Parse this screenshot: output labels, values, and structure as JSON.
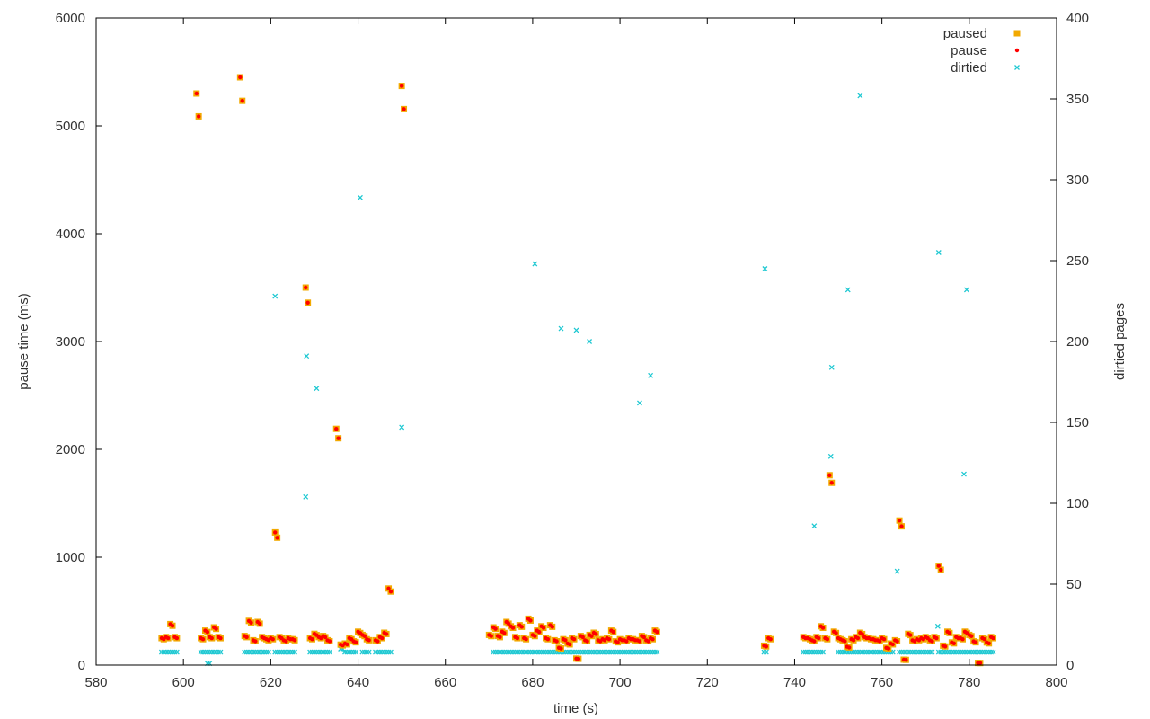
{
  "chart_data": {
    "type": "scatter",
    "title": "",
    "xlabel": "time (s)",
    "ylabel": "pause time (ms)",
    "y2label": "dirtied pages",
    "xlim": [
      580,
      800
    ],
    "ylim": [
      0,
      6000
    ],
    "y2lim": [
      0,
      400
    ],
    "xticks": [
      580,
      600,
      620,
      640,
      660,
      680,
      700,
      720,
      740,
      760,
      780,
      800
    ],
    "yticks": [
      0,
      1000,
      2000,
      3000,
      4000,
      5000,
      6000
    ],
    "y2ticks": [
      0,
      50,
      100,
      150,
      200,
      250,
      300,
      350,
      400
    ],
    "grid": false,
    "legend_position": "top-right",
    "colors": {
      "paused": "#f2a900",
      "pause": "#ff0000",
      "dirtied": "#1ec8d2"
    },
    "series": [
      {
        "name": "paused",
        "marker": "square",
        "axis": "y1",
        "x": [
          595,
          596,
          597,
          598,
          603,
          604,
          605,
          606,
          607,
          608,
          613,
          614,
          615,
          616,
          617,
          618,
          619,
          620,
          621,
          622,
          623,
          624,
          625,
          628,
          629,
          630,
          631,
          632,
          633,
          635,
          636,
          637,
          638,
          639,
          640,
          641,
          642,
          644,
          645,
          646,
          647,
          650,
          670,
          671,
          672,
          673,
          674,
          675,
          676,
          677,
          678,
          679,
          680,
          681,
          682,
          683,
          684,
          685,
          686,
          687,
          688,
          689,
          690,
          691,
          692,
          693,
          694,
          695,
          696,
          697,
          698,
          699,
          700,
          701,
          702,
          703,
          704,
          705,
          706,
          707,
          708,
          733,
          734,
          742,
          743,
          744,
          745,
          746,
          747,
          748,
          749,
          750,
          751,
          752,
          753,
          754,
          755,
          756,
          757,
          758,
          759,
          760,
          761,
          762,
          763,
          764,
          765,
          766,
          767,
          768,
          769,
          770,
          771,
          772,
          773,
          774,
          775,
          776,
          777,
          778,
          779,
          780,
          781,
          782,
          783,
          784,
          785
        ],
        "y": [
          250,
          260,
          380,
          260,
          5300,
          250,
          320,
          260,
          350,
          260,
          5450,
          270,
          410,
          230,
          400,
          260,
          240,
          250,
          1230,
          260,
          230,
          250,
          240,
          3500,
          250,
          290,
          260,
          270,
          230,
          2190,
          190,
          200,
          250,
          220,
          310,
          280,
          240,
          230,
          260,
          300,
          710,
          5370,
          280,
          350,
          270,
          310,
          400,
          360,
          260,
          370,
          250,
          430,
          280,
          320,
          360,
          250,
          370,
          230,
          160,
          240,
          200,
          250,
          60,
          270,
          230,
          280,
          300,
          230,
          240,
          250,
          320,
          220,
          240,
          230,
          250,
          240,
          230,
          270,
          230,
          250,
          320,
          180,
          250,
          260,
          250,
          230,
          260,
          360,
          250,
          1760,
          310,
          250,
          230,
          170,
          240,
          260,
          300,
          260,
          250,
          240,
          230,
          250,
          160,
          200,
          230,
          1340,
          50,
          290,
          230,
          240,
          250,
          260,
          230,
          260,
          920,
          180,
          310,
          210,
          260,
          250,
          310,
          280,
          220,
          20,
          250,
          210,
          260
        ],
        "note": ""
      },
      {
        "name": "pause",
        "marker": "circle",
        "axis": "y1",
        "x": [
          595,
          596,
          597,
          598,
          603,
          604,
          605,
          606,
          607,
          608,
          613,
          614,
          615,
          616,
          617,
          618,
          619,
          620,
          621,
          622,
          623,
          624,
          625,
          628,
          629,
          630,
          631,
          632,
          633,
          635,
          636,
          637,
          638,
          639,
          640,
          641,
          642,
          644,
          645,
          646,
          647,
          650,
          670,
          671,
          672,
          673,
          674,
          675,
          676,
          677,
          678,
          679,
          680,
          681,
          682,
          683,
          684,
          685,
          686,
          687,
          688,
          689,
          690,
          691,
          692,
          693,
          694,
          695,
          696,
          697,
          698,
          699,
          700,
          701,
          702,
          703,
          704,
          705,
          706,
          707,
          708,
          733,
          734,
          742,
          743,
          744,
          745,
          746,
          747,
          748,
          749,
          750,
          751,
          752,
          753,
          754,
          755,
          756,
          757,
          758,
          759,
          760,
          761,
          762,
          763,
          764,
          765,
          766,
          767,
          768,
          769,
          770,
          771,
          772,
          773,
          774,
          775,
          776,
          777,
          778,
          779,
          780,
          781,
          782,
          783,
          784,
          785
        ],
        "y": [
          250,
          260,
          380,
          260,
          5300,
          250,
          320,
          260,
          350,
          260,
          5450,
          270,
          410,
          230,
          400,
          260,
          240,
          250,
          1230,
          260,
          230,
          250,
          240,
          3500,
          250,
          290,
          260,
          270,
          230,
          2190,
          190,
          200,
          250,
          220,
          310,
          280,
          240,
          230,
          260,
          300,
          710,
          5370,
          280,
          350,
          270,
          310,
          400,
          360,
          260,
          370,
          250,
          430,
          280,
          320,
          360,
          250,
          370,
          230,
          160,
          240,
          200,
          250,
          60,
          270,
          230,
          280,
          300,
          230,
          240,
          250,
          320,
          220,
          240,
          230,
          250,
          240,
          230,
          270,
          230,
          250,
          320,
          180,
          250,
          260,
          250,
          230,
          260,
          360,
          250,
          1760,
          310,
          250,
          230,
          170,
          240,
          260,
          300,
          260,
          250,
          240,
          230,
          250,
          160,
          200,
          230,
          1340,
          50,
          290,
          230,
          240,
          250,
          260,
          230,
          260,
          920,
          180,
          310,
          210,
          260,
          250,
          310,
          280,
          220,
          20,
          250,
          210,
          260
        ]
      },
      {
        "name": "dirtied",
        "marker": "cross",
        "axis": "y2",
        "x": [
          595,
          596,
          597,
          598,
          604,
          605,
          606,
          607,
          608,
          614,
          615,
          616,
          617,
          618,
          619,
          621,
          622,
          623,
          624,
          625,
          629,
          630,
          631,
          632,
          633,
          636,
          637,
          638,
          639,
          641,
          642,
          644,
          645,
          646,
          647,
          671,
          672,
          673,
          674,
          675,
          676,
          677,
          678,
          679,
          680,
          681,
          682,
          683,
          684,
          685,
          686,
          687,
          688,
          689,
          690,
          691,
          692,
          693,
          694,
          695,
          696,
          697,
          698,
          699,
          700,
          701,
          702,
          703,
          704,
          705,
          706,
          707,
          708,
          733,
          742,
          743,
          744,
          745,
          746,
          750,
          751,
          752,
          753,
          754,
          755,
          756,
          757,
          758,
          759,
          760,
          761,
          762,
          764,
          765,
          766,
          767,
          768,
          769,
          770,
          771,
          773,
          774,
          775,
          776,
          777,
          778,
          779,
          780,
          781,
          782,
          783,
          784,
          785,
          605.5,
          621,
          628,
          628.2,
          630.5,
          640.5,
          650,
          680.5,
          686.5,
          690,
          693,
          704.5,
          707,
          733.2,
          744.5,
          748.3,
          748.5,
          752.2,
          755,
          763.5,
          772.8,
          773,
          778.8,
          779.4
        ],
        "y": [
          8,
          8,
          8,
          8,
          8,
          8,
          8,
          8,
          8,
          8,
          8,
          8,
          8,
          8,
          8,
          8,
          8,
          8,
          8,
          8,
          8,
          8,
          8,
          8,
          8,
          10,
          8,
          8,
          8,
          8,
          8,
          8,
          8,
          8,
          8,
          8,
          8,
          8,
          8,
          8,
          8,
          8,
          8,
          8,
          8,
          8,
          8,
          8,
          8,
          8,
          8,
          8,
          8,
          8,
          8,
          8,
          8,
          8,
          8,
          8,
          8,
          8,
          8,
          8,
          8,
          8,
          8,
          8,
          8,
          8,
          8,
          8,
          8,
          8,
          8,
          8,
          8,
          8,
          8,
          8,
          8,
          8,
          8,
          8,
          8,
          8,
          8,
          8,
          8,
          8,
          8,
          8,
          8,
          8,
          8,
          8,
          8,
          8,
          8,
          8,
          8,
          8,
          8,
          8,
          8,
          8,
          8,
          8,
          8,
          8,
          8,
          8,
          8,
          1,
          228,
          104,
          191,
          171,
          289,
          147,
          248,
          208,
          207,
          200,
          162,
          179,
          245,
          86,
          129,
          184,
          232,
          352,
          58,
          24,
          255,
          118,
          232
        ]
      }
    ]
  }
}
